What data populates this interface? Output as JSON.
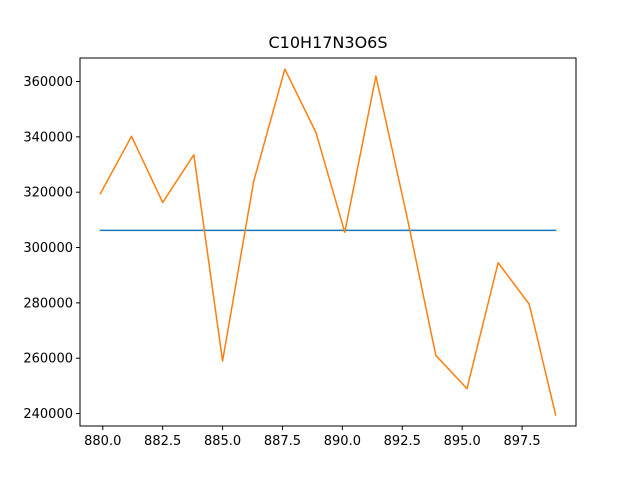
{
  "chart_data": {
    "type": "line",
    "title": "C10H17N3O6S",
    "xlabel": "",
    "ylabel": "",
    "xlim": [
      879.05,
      899.75
    ],
    "ylim": [
      235500,
      368500
    ],
    "grid": false,
    "x_ticks": [
      880.0,
      882.5,
      885.0,
      887.5,
      890.0,
      892.5,
      895.0,
      897.5
    ],
    "x_tick_labels": [
      "880.0",
      "882.5",
      "885.0",
      "887.5",
      "890.0",
      "892.5",
      "895.0",
      "897.5"
    ],
    "y_ticks": [
      240000,
      260000,
      280000,
      300000,
      320000,
      340000,
      360000
    ],
    "y_tick_labels": [
      "240000",
      "260000",
      "280000",
      "300000",
      "320000",
      "340000",
      "360000"
    ],
    "series": [
      {
        "color": "#1f77b4",
        "x": [
          879.9,
          898.9
        ],
        "y": [
          306200,
          306200
        ]
      },
      {
        "color": "#ff7f0e",
        "x": [
          879.9,
          881.2,
          882.5,
          883.8,
          885.0,
          886.3,
          887.6,
          888.9,
          890.1,
          891.4,
          892.7,
          893.9,
          895.2,
          896.5,
          897.8,
          898.9
        ],
        "y": [
          319500,
          340200,
          316300,
          333500,
          259000,
          324000,
          364500,
          341500,
          305500,
          362000,
          311000,
          261000,
          249000,
          294500,
          279500,
          239500
        ]
      }
    ]
  }
}
